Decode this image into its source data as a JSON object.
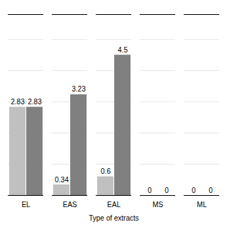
{
  "chart_data": {
    "type": "bar",
    "xlabel": "Type of extracts",
    "categories": [
      "EL",
      "EAS",
      "EAL",
      "MS",
      "ML"
    ],
    "series": [
      {
        "color": "#c0c0c0",
        "values": [
          2.83,
          0.34,
          0.6,
          0,
          0
        ]
      },
      {
        "color": "#808080",
        "values": [
          2.83,
          3.23,
          4.5,
          0,
          0
        ]
      }
    ],
    "ylim": [
      0,
      5.8
    ],
    "yticks": [
      0,
      1,
      2,
      3,
      4,
      5
    ],
    "grid": true,
    "data_labels": true,
    "tick_labels": "x"
  }
}
